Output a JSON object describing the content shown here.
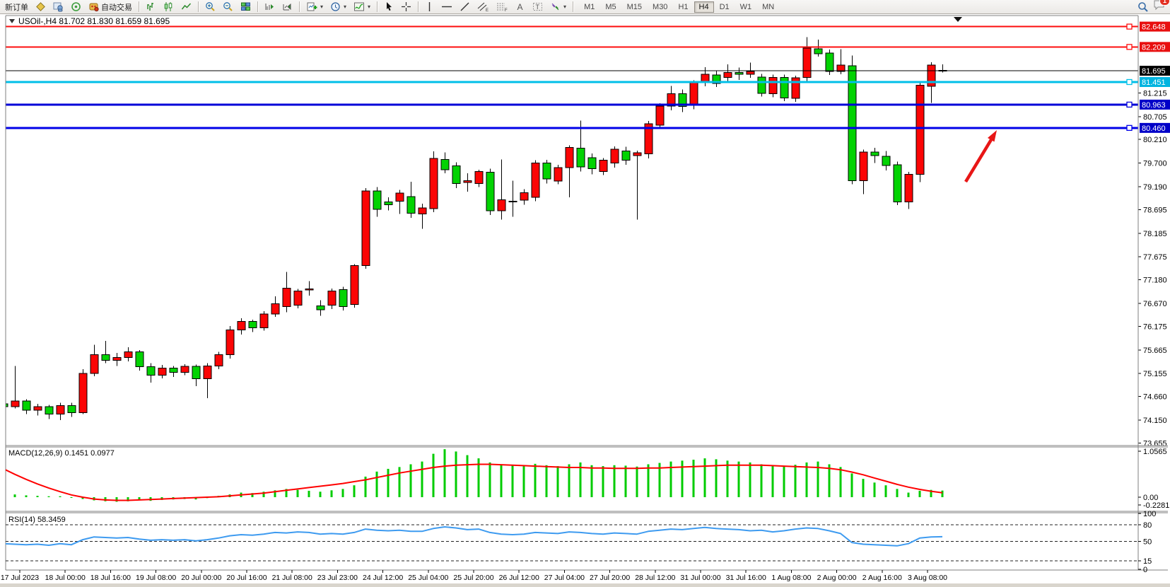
{
  "toolbar": {
    "new_order": "新订单",
    "auto_trading": "自动交易",
    "timeframes": [
      "M1",
      "M5",
      "M15",
      "M30",
      "H1",
      "H4",
      "D1",
      "W1",
      "MN"
    ],
    "active_timeframe": "H4",
    "chat_badge_count": "1"
  },
  "chart": {
    "symbol_title": "USOil-,H4",
    "ohlc_title": "81.702 81.830 81.659 81.695",
    "macd_label": "MACD(12,26,9) 0.1451 0.0977",
    "rsi_label": "RSI(14) 58.3459",
    "price_ticks": [
      "81.215",
      "80.705",
      "80.210",
      "79.700",
      "79.190",
      "78.695",
      "78.185",
      "77.675",
      "77.180",
      "76.670",
      "76.175",
      "75.665",
      "75.155",
      "74.660",
      "74.150",
      "73.655"
    ],
    "hlines": [
      {
        "label": "82.648",
        "price": 82.648,
        "color": "#fd0e0e",
        "width": 2,
        "badge_bg": "#e80f0f"
      },
      {
        "label": "82.209",
        "price": 82.209,
        "color": "#fd0e0e",
        "width": 2,
        "badge_bg": "#e80f0f"
      },
      {
        "label": "81.695",
        "price": 81.695,
        "color": "#000000",
        "width": 1,
        "badge_bg": "#000000"
      },
      {
        "label": "81.451",
        "price": 81.451,
        "color": "#00bfe8",
        "width": 3,
        "badge_bg": "#00b4e0"
      },
      {
        "label": "80.963",
        "price": 80.963,
        "color": "#0000d8",
        "width": 3,
        "badge_bg": "#0000c8"
      },
      {
        "label": "80.460",
        "price": 80.46,
        "color": "#0000e8",
        "width": 3,
        "badge_bg": "#0000c8"
      }
    ],
    "macd_scale": {
      "top": "1.0565",
      "zero": "0.00",
      "bottom": "-0.2281"
    },
    "rsi_scale": [
      {
        "label": "100",
        "value": 100
      },
      {
        "label": "80",
        "value": 80
      },
      {
        "label": "50",
        "value": 50
      },
      {
        "label": "15",
        "value": 15
      },
      {
        "label": "0",
        "value": 0
      }
    ],
    "rsi_dashed_levels": [
      80,
      50,
      15
    ],
    "time_labels": [
      "17 Jul 2023",
      "18 Jul 00:00",
      "18 Jul 16:00",
      "19 Jul 08:00",
      "20 Jul 00:00",
      "20 Jul 16:00",
      "21 Jul 08:00",
      "23 Jul 23:00",
      "24 Jul 12:00",
      "25 Jul 04:00",
      "25 Jul 20:00",
      "26 Jul 12:00",
      "27 Jul 04:00",
      "27 Jul 20:00",
      "28 Jul 12:00",
      "31 Jul 00:00",
      "31 Jul 16:00",
      "1 Aug 08:00",
      "2 Aug 00:00",
      "2 Aug 16:00",
      "3 Aug 08:00"
    ]
  },
  "chart_data": {
    "type": "candlestick",
    "title": "USOil- H4",
    "ylim": [
      73.5,
      82.95
    ],
    "bull_color": "#fb0505",
    "bear_color": "#02d302",
    "wick_color": "#000000",
    "macd_hist_color": "#00cc00",
    "macd_signal_color": "#ff0000",
    "rsi_color": "#3e9bf0",
    "candles_ohlc": [
      [
        74.5,
        74.62,
        74.38,
        74.44
      ],
      [
        74.44,
        75.32,
        74.4,
        74.56
      ],
      [
        74.56,
        74.6,
        74.28,
        74.36
      ],
      [
        74.36,
        74.5,
        74.25,
        74.44
      ],
      [
        74.44,
        74.48,
        74.17,
        74.28
      ],
      [
        74.28,
        74.52,
        74.15,
        74.46
      ],
      [
        74.46,
        74.52,
        74.22,
        74.31
      ],
      [
        74.31,
        75.25,
        74.28,
        75.16
      ],
      [
        75.16,
        75.78,
        75.1,
        75.56
      ],
      [
        75.56,
        75.86,
        75.38,
        75.44
      ],
      [
        75.44,
        75.6,
        75.32,
        75.5
      ],
      [
        75.5,
        75.72,
        75.42,
        75.62
      ],
      [
        75.62,
        75.66,
        75.22,
        75.3
      ],
      [
        75.3,
        75.38,
        74.96,
        75.12
      ],
      [
        75.12,
        75.34,
        75.05,
        75.27
      ],
      [
        75.27,
        75.32,
        75.08,
        75.18
      ],
      [
        75.18,
        75.36,
        75.12,
        75.31
      ],
      [
        75.31,
        75.35,
        74.88,
        75.04
      ],
      [
        75.04,
        75.38,
        74.62,
        75.32
      ],
      [
        75.32,
        75.62,
        75.25,
        75.56
      ],
      [
        75.56,
        76.18,
        75.48,
        76.1
      ],
      [
        76.1,
        76.35,
        76.0,
        76.28
      ],
      [
        76.28,
        76.32,
        76.05,
        76.14
      ],
      [
        76.14,
        76.5,
        76.08,
        76.44
      ],
      [
        76.44,
        76.82,
        76.38,
        76.66
      ],
      [
        76.6,
        77.35,
        76.48,
        77.0
      ],
      [
        76.63,
        76.98,
        76.56,
        76.94
      ],
      [
        76.96,
        77.15,
        76.84,
        76.98
      ],
      [
        76.62,
        76.74,
        76.4,
        76.53
      ],
      [
        76.63,
        76.99,
        76.55,
        76.94
      ],
      [
        76.97,
        77.03,
        76.52,
        76.6
      ],
      [
        76.65,
        77.52,
        76.58,
        77.49
      ],
      [
        77.49,
        79.16,
        77.42,
        79.1
      ],
      [
        79.1,
        79.18,
        78.54,
        78.7
      ],
      [
        78.86,
        78.96,
        78.68,
        78.8
      ],
      [
        78.88,
        79.12,
        78.6,
        79.05
      ],
      [
        78.98,
        79.3,
        78.52,
        78.62
      ],
      [
        78.6,
        78.82,
        78.28,
        78.73
      ],
      [
        78.72,
        79.95,
        78.64,
        79.8
      ],
      [
        79.78,
        79.93,
        79.48,
        79.56
      ],
      [
        79.64,
        79.72,
        79.16,
        79.26
      ],
      [
        79.28,
        79.48,
        79.08,
        79.32
      ],
      [
        79.26,
        79.56,
        79.18,
        79.52
      ],
      [
        79.5,
        79.58,
        78.58,
        78.67
      ],
      [
        78.67,
        79.78,
        78.48,
        78.91
      ],
      [
        78.86,
        79.32,
        78.54,
        78.88
      ],
      [
        78.9,
        79.14,
        78.8,
        79.06
      ],
      [
        78.96,
        79.76,
        78.88,
        79.7
      ],
      [
        79.7,
        79.77,
        79.26,
        79.36
      ],
      [
        79.31,
        79.66,
        79.24,
        79.6
      ],
      [
        79.6,
        80.08,
        78.96,
        80.04
      ],
      [
        80.02,
        80.62,
        79.52,
        79.62
      ],
      [
        79.82,
        79.91,
        79.46,
        79.58
      ],
      [
        79.52,
        79.81,
        79.44,
        79.76
      ],
      [
        79.7,
        80.06,
        79.6,
        80.0
      ],
      [
        79.96,
        80.05,
        79.66,
        79.76
      ],
      [
        79.86,
        79.97,
        78.48,
        79.92
      ],
      [
        79.9,
        80.61,
        79.8,
        80.55
      ],
      [
        80.52,
        80.99,
        80.44,
        80.93
      ],
      [
        80.93,
        81.37,
        80.84,
        81.2
      ],
      [
        81.2,
        81.29,
        80.8,
        80.92
      ],
      [
        80.95,
        81.49,
        80.86,
        81.44
      ],
      [
        81.44,
        81.77,
        81.36,
        81.62
      ],
      [
        81.6,
        81.69,
        81.34,
        81.42
      ],
      [
        81.55,
        81.83,
        81.46,
        81.66
      ],
      [
        81.66,
        81.76,
        81.5,
        81.62
      ],
      [
        81.62,
        81.87,
        81.54,
        81.68
      ],
      [
        81.56,
        81.63,
        81.14,
        81.21
      ],
      [
        81.2,
        81.61,
        81.12,
        81.55
      ],
      [
        81.55,
        81.61,
        81.04,
        81.11
      ],
      [
        81.1,
        81.59,
        81.02,
        81.54
      ],
      [
        81.55,
        82.42,
        81.47,
        82.18
      ],
      [
        82.17,
        82.37,
        82.0,
        82.06
      ],
      [
        82.08,
        82.15,
        81.6,
        81.68
      ],
      [
        81.68,
        82.16,
        81.62,
        81.82
      ],
      [
        81.8,
        82.02,
        79.24,
        79.32
      ],
      [
        79.32,
        79.99,
        79.03,
        79.94
      ],
      [
        79.94,
        80.03,
        79.7,
        79.86
      ],
      [
        79.85,
        79.96,
        79.54,
        79.65
      ],
      [
        79.66,
        79.73,
        78.79,
        78.86
      ],
      [
        78.86,
        79.51,
        78.71,
        79.46
      ],
      [
        79.46,
        81.43,
        79.29,
        81.38
      ],
      [
        81.36,
        81.88,
        81.0,
        81.82
      ],
      [
        81.702,
        81.83,
        81.659,
        81.695
      ]
    ],
    "macd_histogram": [
      0.08,
      0.06,
      0.04,
      0.03,
      0.02,
      0.02,
      -0.01,
      -0.04,
      -0.07,
      -0.09,
      -0.1,
      -0.09,
      -0.07,
      -0.08,
      -0.06,
      -0.05,
      -0.04,
      -0.05,
      -0.02,
      0.03,
      0.06,
      0.1,
      0.09,
      0.12,
      0.15,
      0.18,
      0.16,
      0.14,
      0.12,
      0.15,
      0.18,
      0.26,
      0.45,
      0.56,
      0.62,
      0.66,
      0.72,
      0.78,
      0.95,
      1.05,
      1.0,
      0.92,
      0.85,
      0.76,
      0.72,
      0.7,
      0.68,
      0.73,
      0.7,
      0.68,
      0.72,
      0.76,
      0.7,
      0.68,
      0.7,
      0.69,
      0.67,
      0.72,
      0.75,
      0.78,
      0.8,
      0.82,
      0.85,
      0.83,
      0.8,
      0.78,
      0.76,
      0.72,
      0.7,
      0.69,
      0.71,
      0.76,
      0.78,
      0.72,
      0.66,
      0.52,
      0.4,
      0.32,
      0.26,
      0.18,
      0.1,
      0.14,
      0.16,
      0.1451
    ],
    "macd_signal": [
      0.62,
      0.5,
      0.39,
      0.29,
      0.2,
      0.12,
      0.05,
      0.0,
      -0.04,
      -0.06,
      -0.07,
      -0.07,
      -0.06,
      -0.05,
      -0.04,
      -0.03,
      -0.02,
      -0.01,
      0.0,
      0.01,
      0.03,
      0.05,
      0.07,
      0.09,
      0.12,
      0.15,
      0.18,
      0.21,
      0.24,
      0.27,
      0.3,
      0.34,
      0.38,
      0.43,
      0.48,
      0.53,
      0.57,
      0.61,
      0.65,
      0.68,
      0.7,
      0.71,
      0.72,
      0.72,
      0.71,
      0.7,
      0.69,
      0.68,
      0.67,
      0.66,
      0.65,
      0.65,
      0.64,
      0.64,
      0.63,
      0.63,
      0.63,
      0.64,
      0.64,
      0.65,
      0.66,
      0.67,
      0.68,
      0.69,
      0.7,
      0.7,
      0.7,
      0.7,
      0.69,
      0.68,
      0.67,
      0.66,
      0.65,
      0.63,
      0.6,
      0.55,
      0.49,
      0.42,
      0.35,
      0.28,
      0.22,
      0.17,
      0.13,
      0.098
    ],
    "rsi": [
      46,
      45,
      44,
      45,
      43,
      46,
      44,
      53,
      58,
      57,
      56,
      57,
      54,
      52,
      53,
      52,
      53,
      51,
      53,
      56,
      60,
      62,
      61,
      63,
      66,
      65,
      67,
      66,
      63,
      64,
      63,
      66,
      72,
      70,
      69,
      70,
      68,
      68,
      73,
      76,
      74,
      71,
      72,
      66,
      63,
      62,
      63,
      66,
      65,
      64,
      67,
      66,
      64,
      63,
      65,
      64,
      63,
      68,
      70,
      72,
      71,
      73,
      75,
      73,
      72,
      71,
      69,
      70,
      67,
      69,
      72,
      74,
      73,
      69,
      64,
      48,
      45,
      44,
      43,
      42,
      46,
      56,
      58,
      58.35
    ]
  },
  "annotation": {
    "arrow_color": "#e81616"
  }
}
